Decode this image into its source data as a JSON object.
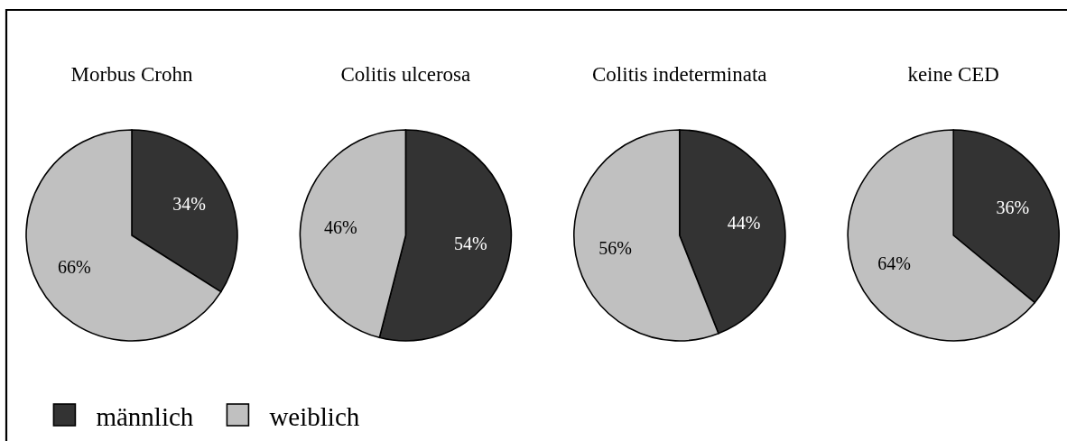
{
  "chart_data": [
    {
      "type": "pie",
      "title": "Morbus Crohn",
      "categories": [
        "männlich",
        "weiblich"
      ],
      "values": [
        34,
        66
      ],
      "colors": [
        "#333333",
        "#c0c0c0"
      ],
      "value_labels": [
        "34%",
        "66%"
      ],
      "legend": "bottom right"
    },
    {
      "type": "pie",
      "title": "Colitis ulcerosa",
      "categories": [
        null,
        null
      ],
      "values": [
        54,
        46
      ],
      "colors": [
        "#333333",
        "#c0c0c0"
      ],
      "value_labels": [
        "54%",
        "46%"
      ]
    },
    {
      "type": "pie",
      "title": "Colitis indeterminata",
      "categories": [
        null,
        null
      ],
      "values": [
        44,
        56
      ],
      "colors": [
        "#333333",
        "#c0c0c0"
      ],
      "value_labels": [
        "44%",
        "56%"
      ]
    },
    {
      "type": "pie",
      "title": "keine CED",
      "categories": [
        null,
        null
      ],
      "values": [
        36,
        64
      ],
      "colors": [
        "#333333",
        "#c0c0c0"
      ],
      "value_labels": [
        "36%",
        "64%"
      ]
    }
  ]
}
